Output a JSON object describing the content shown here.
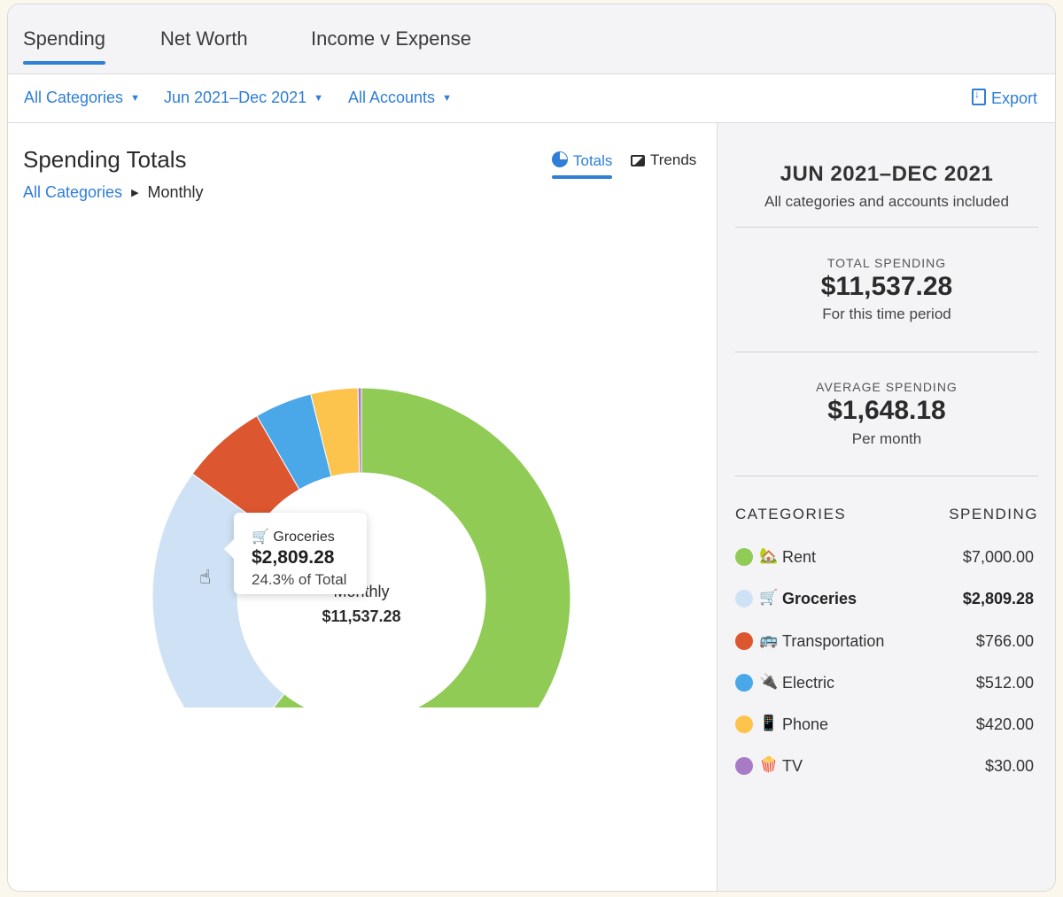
{
  "tabs": [
    {
      "label": "Spending",
      "active": true
    },
    {
      "label": "Net Worth",
      "active": false
    },
    {
      "label": "Income v Expense",
      "active": false
    }
  ],
  "filters": {
    "categories": "All Categories",
    "date_range": "Jun 2021–Dec 2021",
    "accounts": "All Accounts",
    "export_label": "Export"
  },
  "left": {
    "title": "Spending Totals",
    "breadcrumb": {
      "root": "All Categories",
      "current": "Monthly"
    },
    "view_toggle": {
      "totals": "Totals",
      "trends": "Trends",
      "selected": "totals"
    },
    "donut_center": {
      "label": "Monthly",
      "total": "$11,537.28"
    },
    "tooltip": {
      "icon": "🛒",
      "name": "Groceries",
      "amount": "$2,809.28",
      "percent": "24.3% of Total"
    }
  },
  "right": {
    "period": "JUN 2021–DEC 2021",
    "subtitle": "All categories and accounts included",
    "total_spending": {
      "label": "TOTAL SPENDING",
      "value": "$11,537.28",
      "note": "For this time period"
    },
    "average_spending": {
      "label": "AVERAGE SPENDING",
      "value": "$1,648.18",
      "note": "Per month"
    },
    "categories_header": "CATEGORIES",
    "spending_header": "SPENDING",
    "categories": [
      {
        "name": "Rent",
        "icon": "🏡",
        "amount": "$7,000.00",
        "value": 7000.0,
        "color": "#8fcb55",
        "highlight": false
      },
      {
        "name": "Groceries",
        "icon": "🛒",
        "amount": "$2,809.28",
        "value": 2809.28,
        "color": "#cfe2f5",
        "highlight": true
      },
      {
        "name": "Transportation",
        "icon": "🚌",
        "amount": "$766.00",
        "value": 766.0,
        "color": "#dc5730",
        "highlight": false
      },
      {
        "name": "Electric",
        "icon": "🔌",
        "amount": "$512.00",
        "value": 512.0,
        "color": "#4aa8e8",
        "highlight": false
      },
      {
        "name": "Phone",
        "icon": "📱",
        "amount": "$420.00",
        "value": 420.0,
        "color": "#fcc44c",
        "highlight": false
      },
      {
        "name": "TV",
        "icon": "🍿",
        "amount": "$30.00",
        "value": 30.0,
        "color": "#a87bc7",
        "highlight": false
      }
    ]
  },
  "colors": {
    "accent": "#2f7ed8"
  }
}
